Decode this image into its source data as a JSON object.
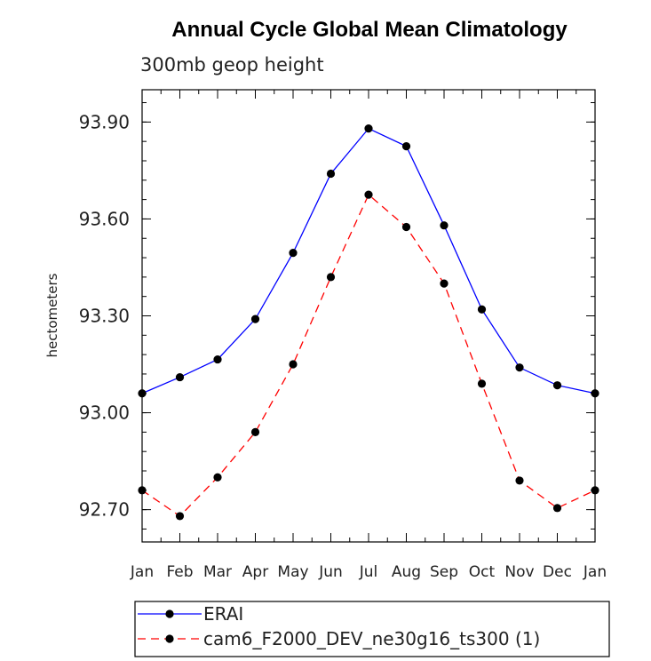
{
  "chart_data": {
    "type": "line",
    "title": "Annual Cycle Global Mean Climatology",
    "subtitle": "300mb geop height",
    "ylabel": "hectometers",
    "xlabel": "",
    "categories": [
      "Jan",
      "Feb",
      "Mar",
      "Apr",
      "May",
      "Jun",
      "Jul",
      "Aug",
      "Sep",
      "Oct",
      "Nov",
      "Dec",
      "Jan"
    ],
    "ylim": [
      92.6,
      94.0
    ],
    "yticks": [
      92.7,
      93.0,
      93.3,
      93.6,
      93.9
    ],
    "ytick_labels": [
      "92.70",
      "93.00",
      "93.30",
      "93.60",
      "93.90"
    ],
    "grid": false,
    "legend_position": "bottom-left",
    "series": [
      {
        "name": "ERAI",
        "color": "#0000ff",
        "dash": "solid",
        "values": [
          93.06,
          93.11,
          93.165,
          93.29,
          93.495,
          93.74,
          93.88,
          93.825,
          93.58,
          93.32,
          93.14,
          93.085,
          93.06
        ]
      },
      {
        "name": "cam6_F2000_DEV_ne30g16_ts300 (1)",
        "color": "#ff0000",
        "dash": "dashed",
        "values": [
          92.76,
          92.68,
          92.8,
          92.94,
          93.15,
          93.42,
          93.675,
          93.575,
          93.4,
          93.09,
          92.79,
          92.705,
          92.76
        ]
      }
    ]
  }
}
